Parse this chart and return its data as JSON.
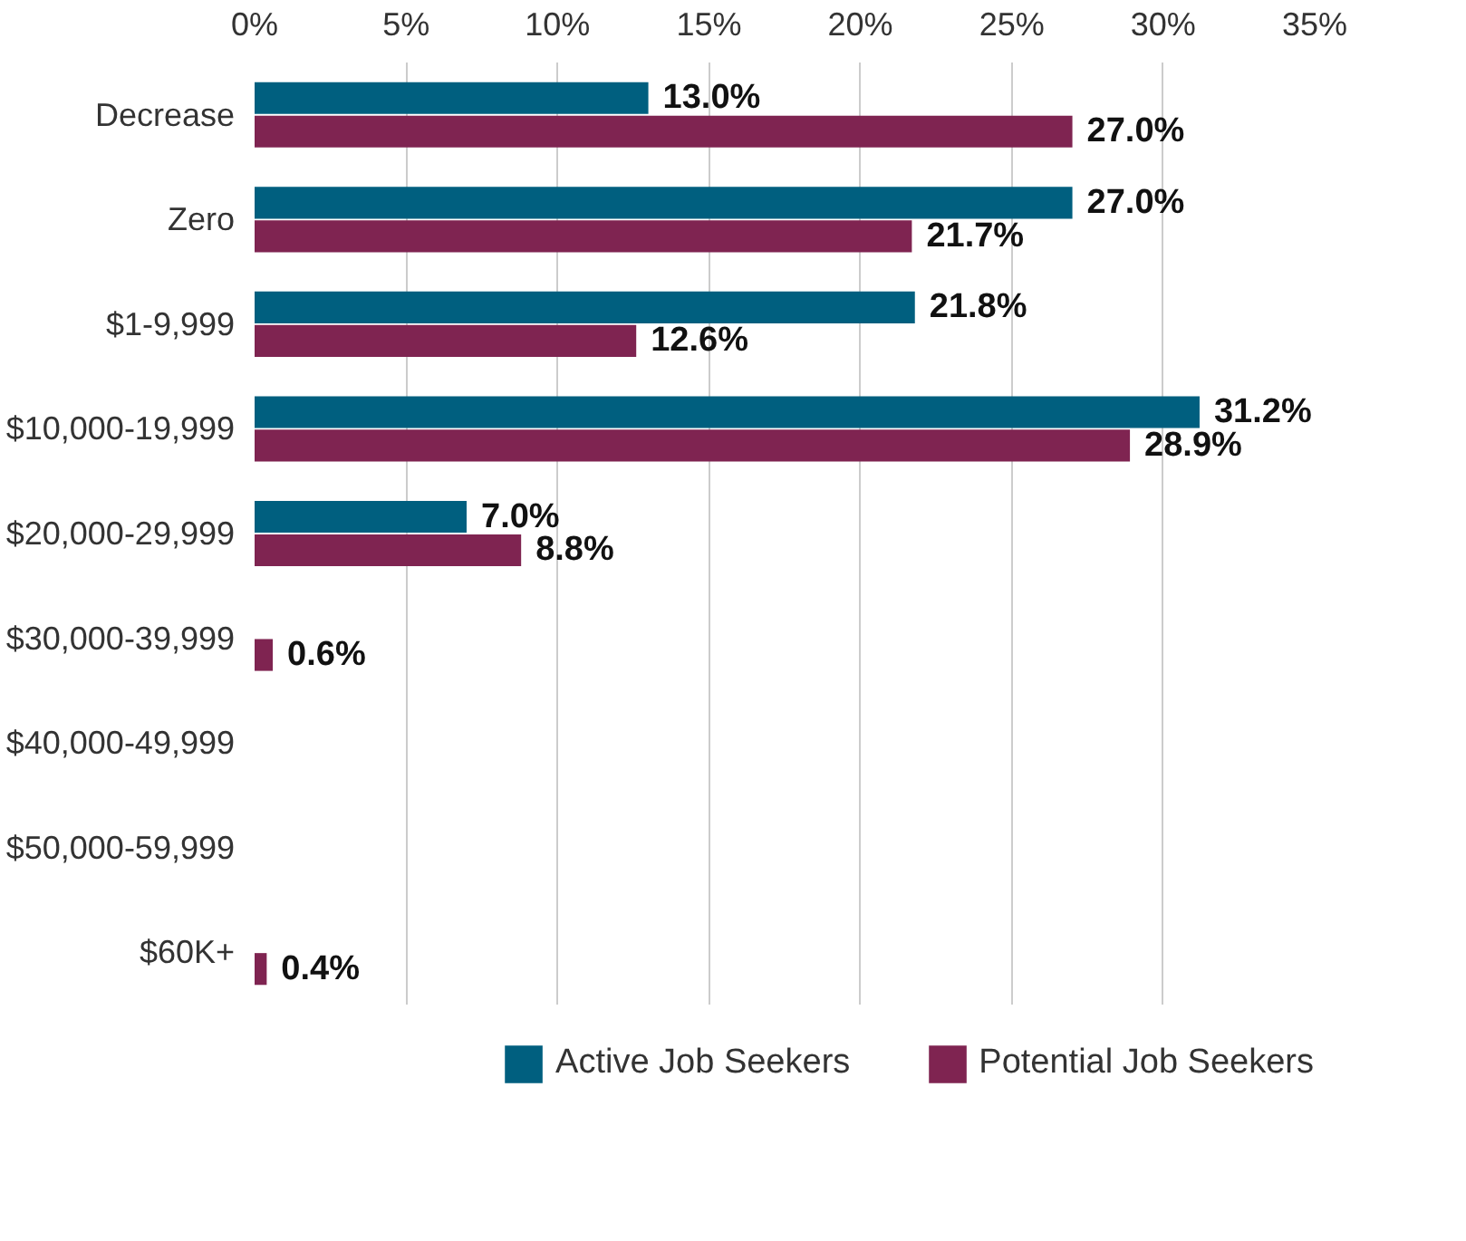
{
  "chart_data": {
    "type": "bar",
    "orientation": "horizontal",
    "categories": [
      "Decrease",
      "Zero",
      "$1-9,999",
      "$10,000-19,999",
      "$20,000-29,999",
      "$30,000-39,999",
      "$40,000-49,999",
      "$50,000-59,999",
      "$60K+"
    ],
    "series": [
      {
        "name": "Active Job Seekers",
        "color": "#005f7f",
        "values": [
          13.0,
          27.0,
          21.8,
          31.2,
          7.0,
          null,
          null,
          null,
          null
        ],
        "value_labels": [
          "13.0%",
          "27.0%",
          "21.8%",
          "31.2%",
          "7.0%",
          null,
          null,
          null,
          null
        ]
      },
      {
        "name": "Potential Job Seekers",
        "color": "#7f2451",
        "values": [
          27.0,
          21.7,
          12.6,
          28.9,
          8.8,
          0.6,
          null,
          null,
          0.4
        ],
        "value_labels": [
          "27.0%",
          "21.7%",
          "12.6%",
          "28.9%",
          "8.8%",
          "0.6%",
          null,
          null,
          "0.4%"
        ]
      }
    ],
    "xlim": [
      0,
      35
    ],
    "xticks": [
      {
        "value": 0,
        "label": "0%"
      },
      {
        "value": 5,
        "label": "5%"
      },
      {
        "value": 10,
        "label": "10%"
      },
      {
        "value": 15,
        "label": "15%"
      },
      {
        "value": 20,
        "label": "20%"
      },
      {
        "value": 25,
        "label": "25%"
      },
      {
        "value": 30,
        "label": "30%"
      },
      {
        "value": 35,
        "label": "35%"
      }
    ],
    "grid": "x",
    "legend": "bottom"
  }
}
